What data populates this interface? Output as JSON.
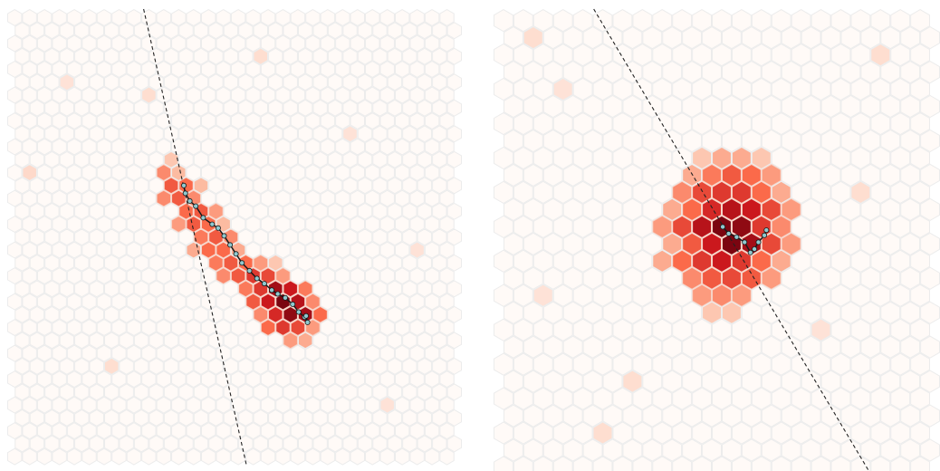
{
  "chart_data": [
    {
      "type": "hexbin",
      "xlim": [
        0,
        29
      ],
      "ylim": [
        0,
        34
      ],
      "cmap": [
        "#fff5f0",
        "#fcbba1",
        "#fb6a4a",
        "#cb181d",
        "#67000d"
      ],
      "cells": {
        "x": [
          10,
          10,
          11,
          10,
          11,
          12,
          10,
          11,
          12,
          11,
          12,
          13,
          11,
          12,
          13,
          14,
          12,
          13,
          14,
          12,
          13,
          14,
          15,
          13,
          14,
          15,
          16,
          17,
          14,
          15,
          16,
          17,
          18,
          15,
          16,
          17,
          18,
          19,
          16,
          17,
          18,
          19,
          20,
          16,
          17,
          18,
          19,
          20,
          17,
          18,
          19,
          20,
          18,
          19,
          1,
          22,
          6,
          25,
          16,
          3,
          27,
          9
        ],
        "y": [
          11,
          12,
          12,
          13,
          13,
          13,
          14,
          14,
          14,
          15,
          15,
          15,
          16,
          16,
          16,
          16,
          17,
          17,
          17,
          18,
          18,
          18,
          18,
          19,
          19,
          19,
          19,
          19,
          20,
          20,
          20,
          20,
          20,
          21,
          21,
          21,
          21,
          21,
          22,
          22,
          22,
          22,
          22,
          23,
          23,
          23,
          23,
          23,
          24,
          24,
          24,
          24,
          25,
          25,
          12,
          9,
          27,
          30,
          3,
          5,
          18,
          6
        ],
        "values": [
          0.2,
          0.4,
          0.25,
          0.55,
          0.5,
          0.25,
          0.4,
          0.55,
          0.4,
          0.5,
          0.55,
          0.35,
          0.35,
          0.55,
          0.5,
          0.25,
          0.45,
          0.55,
          0.4,
          0.3,
          0.5,
          0.5,
          0.3,
          0.45,
          0.55,
          0.5,
          0.35,
          0.2,
          0.4,
          0.55,
          0.65,
          0.6,
          0.35,
          0.45,
          0.65,
          0.85,
          0.75,
          0.45,
          0.55,
          0.75,
          0.95,
          0.8,
          0.4,
          0.4,
          0.7,
          0.9,
          0.85,
          0.5,
          0.5,
          0.65,
          0.6,
          0.35,
          0.35,
          0.3,
          0.12,
          0.08,
          0.1,
          0.08,
          0.1,
          0.08,
          0.08,
          0.1
        ]
      },
      "line": {
        "x": [
          8.4,
          15.3
        ],
        "y": [
          0,
          34
        ]
      },
      "track": {
        "x": [
          11.1,
          11.2,
          11.5,
          11.9,
          12.4,
          13.0,
          13.4,
          13.8,
          14.2,
          14.6,
          15.0,
          15.5,
          16.0,
          16.5,
          17.0,
          17.4,
          17.9,
          18.4,
          18.8,
          19.2,
          19.4,
          19.3
        ],
        "y": [
          13.0,
          13.6,
          14.2,
          14.6,
          15.5,
          16.0,
          16.3,
          16.9,
          17.6,
          18.3,
          19.0,
          19.6,
          20.2,
          20.6,
          21.1,
          21.4,
          21.7,
          22.2,
          22.8,
          23.2,
          23.6,
          23.1
        ]
      },
      "track_color": "#8fc9cf",
      "line_color": "#222222"
    },
    {
      "type": "hexbin",
      "xlim": [
        0,
        21
      ],
      "ylim": [
        0,
        26
      ],
      "cmap": [
        "#fff5f0",
        "#fcbba1",
        "#fb6a4a",
        "#cb181d",
        "#67000d"
      ],
      "cells": {
        "x": [
          10,
          11,
          12,
          13,
          9,
          10,
          11,
          12,
          13,
          9,
          10,
          11,
          12,
          13,
          14,
          8,
          9,
          10,
          11,
          12,
          13,
          14,
          8,
          9,
          10,
          11,
          12,
          13,
          14,
          8,
          9,
          10,
          11,
          12,
          13,
          14,
          8,
          9,
          10,
          11,
          12,
          13,
          14,
          9,
          10,
          11,
          12,
          13,
          10,
          11,
          12,
          10,
          11,
          1,
          3,
          19,
          6,
          16,
          2,
          18,
          5
        ],
        "y": [
          8,
          8,
          8,
          8,
          9,
          9,
          9,
          9,
          9,
          10,
          10,
          10,
          10,
          10,
          10,
          11,
          11,
          11,
          11,
          11,
          11,
          11,
          12,
          12,
          12,
          12,
          12,
          12,
          12,
          13,
          13,
          13,
          13,
          13,
          13,
          13,
          14,
          14,
          14,
          14,
          14,
          14,
          14,
          15,
          15,
          15,
          15,
          15,
          16,
          16,
          16,
          17,
          17,
          1,
          4,
          2,
          21,
          18,
          16,
          10,
          24
        ],
        "values": [
          0.2,
          0.3,
          0.3,
          0.2,
          0.3,
          0.45,
          0.55,
          0.5,
          0.35,
          0.4,
          0.6,
          0.65,
          0.65,
          0.5,
          0.3,
          0.3,
          0.5,
          0.7,
          0.8,
          0.75,
          0.6,
          0.35,
          0.35,
          0.6,
          0.8,
          0.95,
          0.9,
          0.65,
          0.4,
          0.3,
          0.55,
          0.75,
          0.95,
          0.85,
          0.6,
          0.35,
          0.3,
          0.5,
          0.65,
          0.75,
          0.65,
          0.5,
          0.3,
          0.4,
          0.55,
          0.6,
          0.55,
          0.35,
          0.35,
          0.4,
          0.35,
          0.2,
          0.2,
          0.1,
          0.08,
          0.1,
          0.1,
          0.08,
          0.08,
          0.1,
          0.1
        ]
      },
      "line": {
        "x": [
          4.3,
          18.4
        ],
        "y": [
          0,
          26
        ]
      },
      "track": {
        "x": [
          10.8,
          11.1,
          11.5,
          11.9,
          12.2,
          12.4,
          12.6,
          12.9,
          13.0
        ],
        "y": [
          12.0,
          12.4,
          12.6,
          12.9,
          13.5,
          13.3,
          12.9,
          12.5,
          12.2
        ]
      },
      "track_color": "#8fc9cf",
      "line_color": "#222222"
    }
  ]
}
